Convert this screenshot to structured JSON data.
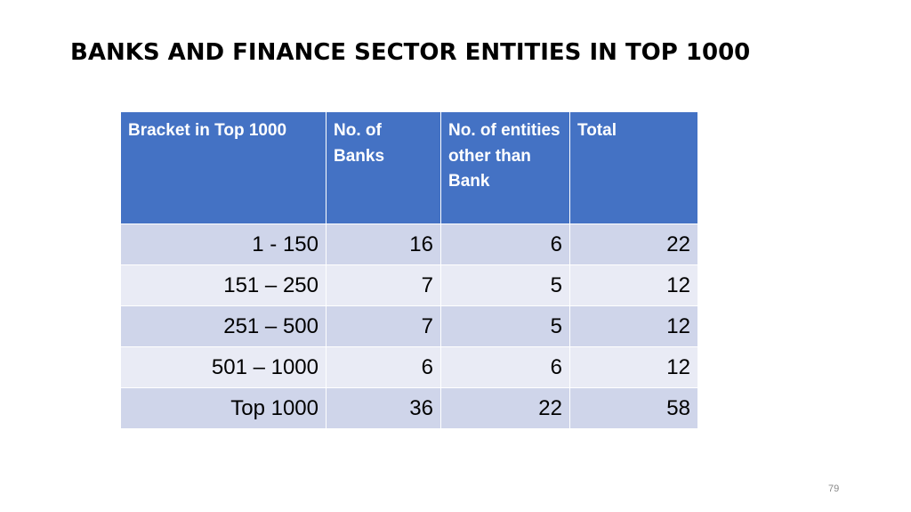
{
  "slide": {
    "title": "BANKS AND FINANCE SECTOR ENTITIES IN TOP 1000",
    "page_number": "79"
  },
  "table": {
    "headers": [
      "Bracket in Top 1000",
      "No. of Banks",
      "No. of entities other than Bank",
      "Total"
    ],
    "rows": [
      [
        "1  -  150",
        "16",
        "6",
        "22"
      ],
      [
        "151 – 250",
        "7",
        "5",
        "12"
      ],
      [
        "251 – 500",
        "7",
        "5",
        "12"
      ],
      [
        "501 – 1000",
        "6",
        "6",
        "12"
      ],
      [
        "Top 1000",
        "36",
        "22",
        "58"
      ]
    ]
  },
  "colors": {
    "header_bg": "#4472c4",
    "row_dark": "#cfd5ea",
    "row_light": "#e9ebf5"
  }
}
